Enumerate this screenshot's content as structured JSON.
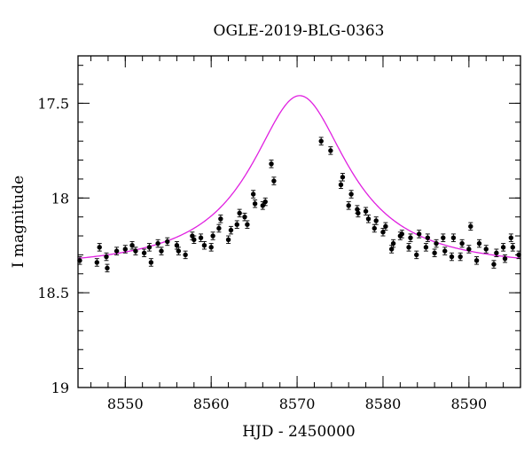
{
  "chart_data": {
    "type": "scatter",
    "title": "OGLE-2019-BLG-0363",
    "xlabel": "HJD - 2450000",
    "ylabel": "I magnitude",
    "xlim": [
      8544.5,
      8596
    ],
    "ylim": [
      19,
      17.25
    ],
    "y_inverted": true,
    "grid": false,
    "xticks_major": [
      8550,
      8560,
      8570,
      8580,
      8590
    ],
    "xticks_minor_step": 2,
    "yticks_major": [
      17.5,
      18,
      18.5,
      19
    ],
    "yticks_minor_step": 0.1,
    "ytick_labels": [
      "17.5",
      "18",
      "18.5",
      "19"
    ],
    "series": [
      {
        "kind": "observations",
        "color": "#000000",
        "x": [
          8544.7,
          8546.7,
          8547.0,
          8547.8,
          8547.9,
          8549.0,
          8550.0,
          8550.8,
          8551.2,
          8552.2,
          8552.8,
          8553.0,
          8553.8,
          8554.2,
          8554.9,
          8556.0,
          8556.2,
          8557.0,
          8557.8,
          8558.0,
          8558.8,
          8559.2,
          8560.0,
          8560.2,
          8560.9,
          8561.1,
          8562.0,
          8562.3,
          8563.0,
          8563.3,
          8563.9,
          8564.2,
          8564.9,
          8565.1,
          8566.0,
          8566.3,
          8567.0,
          8567.3,
          8572.8,
          8573.9,
          8575.1,
          8575.3,
          8576.0,
          8576.3,
          8577.0,
          8577.1,
          8578.0,
          8578.3,
          8579.0,
          8579.2,
          8580.0,
          8580.3,
          8581.0,
          8581.2,
          8582.0,
          8582.2,
          8583.0,
          8583.2,
          8583.9,
          8584.2,
          8585.0,
          8585.2,
          8586.0,
          8586.2,
          8587.0,
          8587.2,
          8588.0,
          8588.2,
          8589.0,
          8589.2,
          8590.0,
          8590.2,
          8590.9,
          8591.2,
          8592.0,
          8592.9,
          8593.2,
          8594.0,
          8594.2,
          8594.9,
          8595.1,
          8595.8
        ],
        "y": [
          18.33,
          18.34,
          18.26,
          18.31,
          18.37,
          18.28,
          18.27,
          18.25,
          18.28,
          18.29,
          18.26,
          18.34,
          18.24,
          18.28,
          18.23,
          18.25,
          18.28,
          18.3,
          18.2,
          18.22,
          18.21,
          18.25,
          18.26,
          18.2,
          18.16,
          18.11,
          18.22,
          18.17,
          18.14,
          18.08,
          18.1,
          18.14,
          17.98,
          18.03,
          18.04,
          18.02,
          17.82,
          17.91,
          17.7,
          17.75,
          17.93,
          17.89,
          18.04,
          17.98,
          18.06,
          18.08,
          18.07,
          18.11,
          18.16,
          18.12,
          18.18,
          18.15,
          18.27,
          18.24,
          18.2,
          18.19,
          18.26,
          18.21,
          18.3,
          18.19,
          18.26,
          18.21,
          18.29,
          18.24,
          18.21,
          18.28,
          18.31,
          18.21,
          18.31,
          18.24,
          18.27,
          18.15,
          18.33,
          18.24,
          18.27,
          18.35,
          18.29,
          18.26,
          18.32,
          18.21,
          18.26,
          18.3
        ],
        "yerr": 0.02
      },
      {
        "kind": "model",
        "color": "#e020e0",
        "t0": 8570.3,
        "peak": 17.46,
        "baseline": 18.38,
        "width": 6.9
      }
    ]
  }
}
